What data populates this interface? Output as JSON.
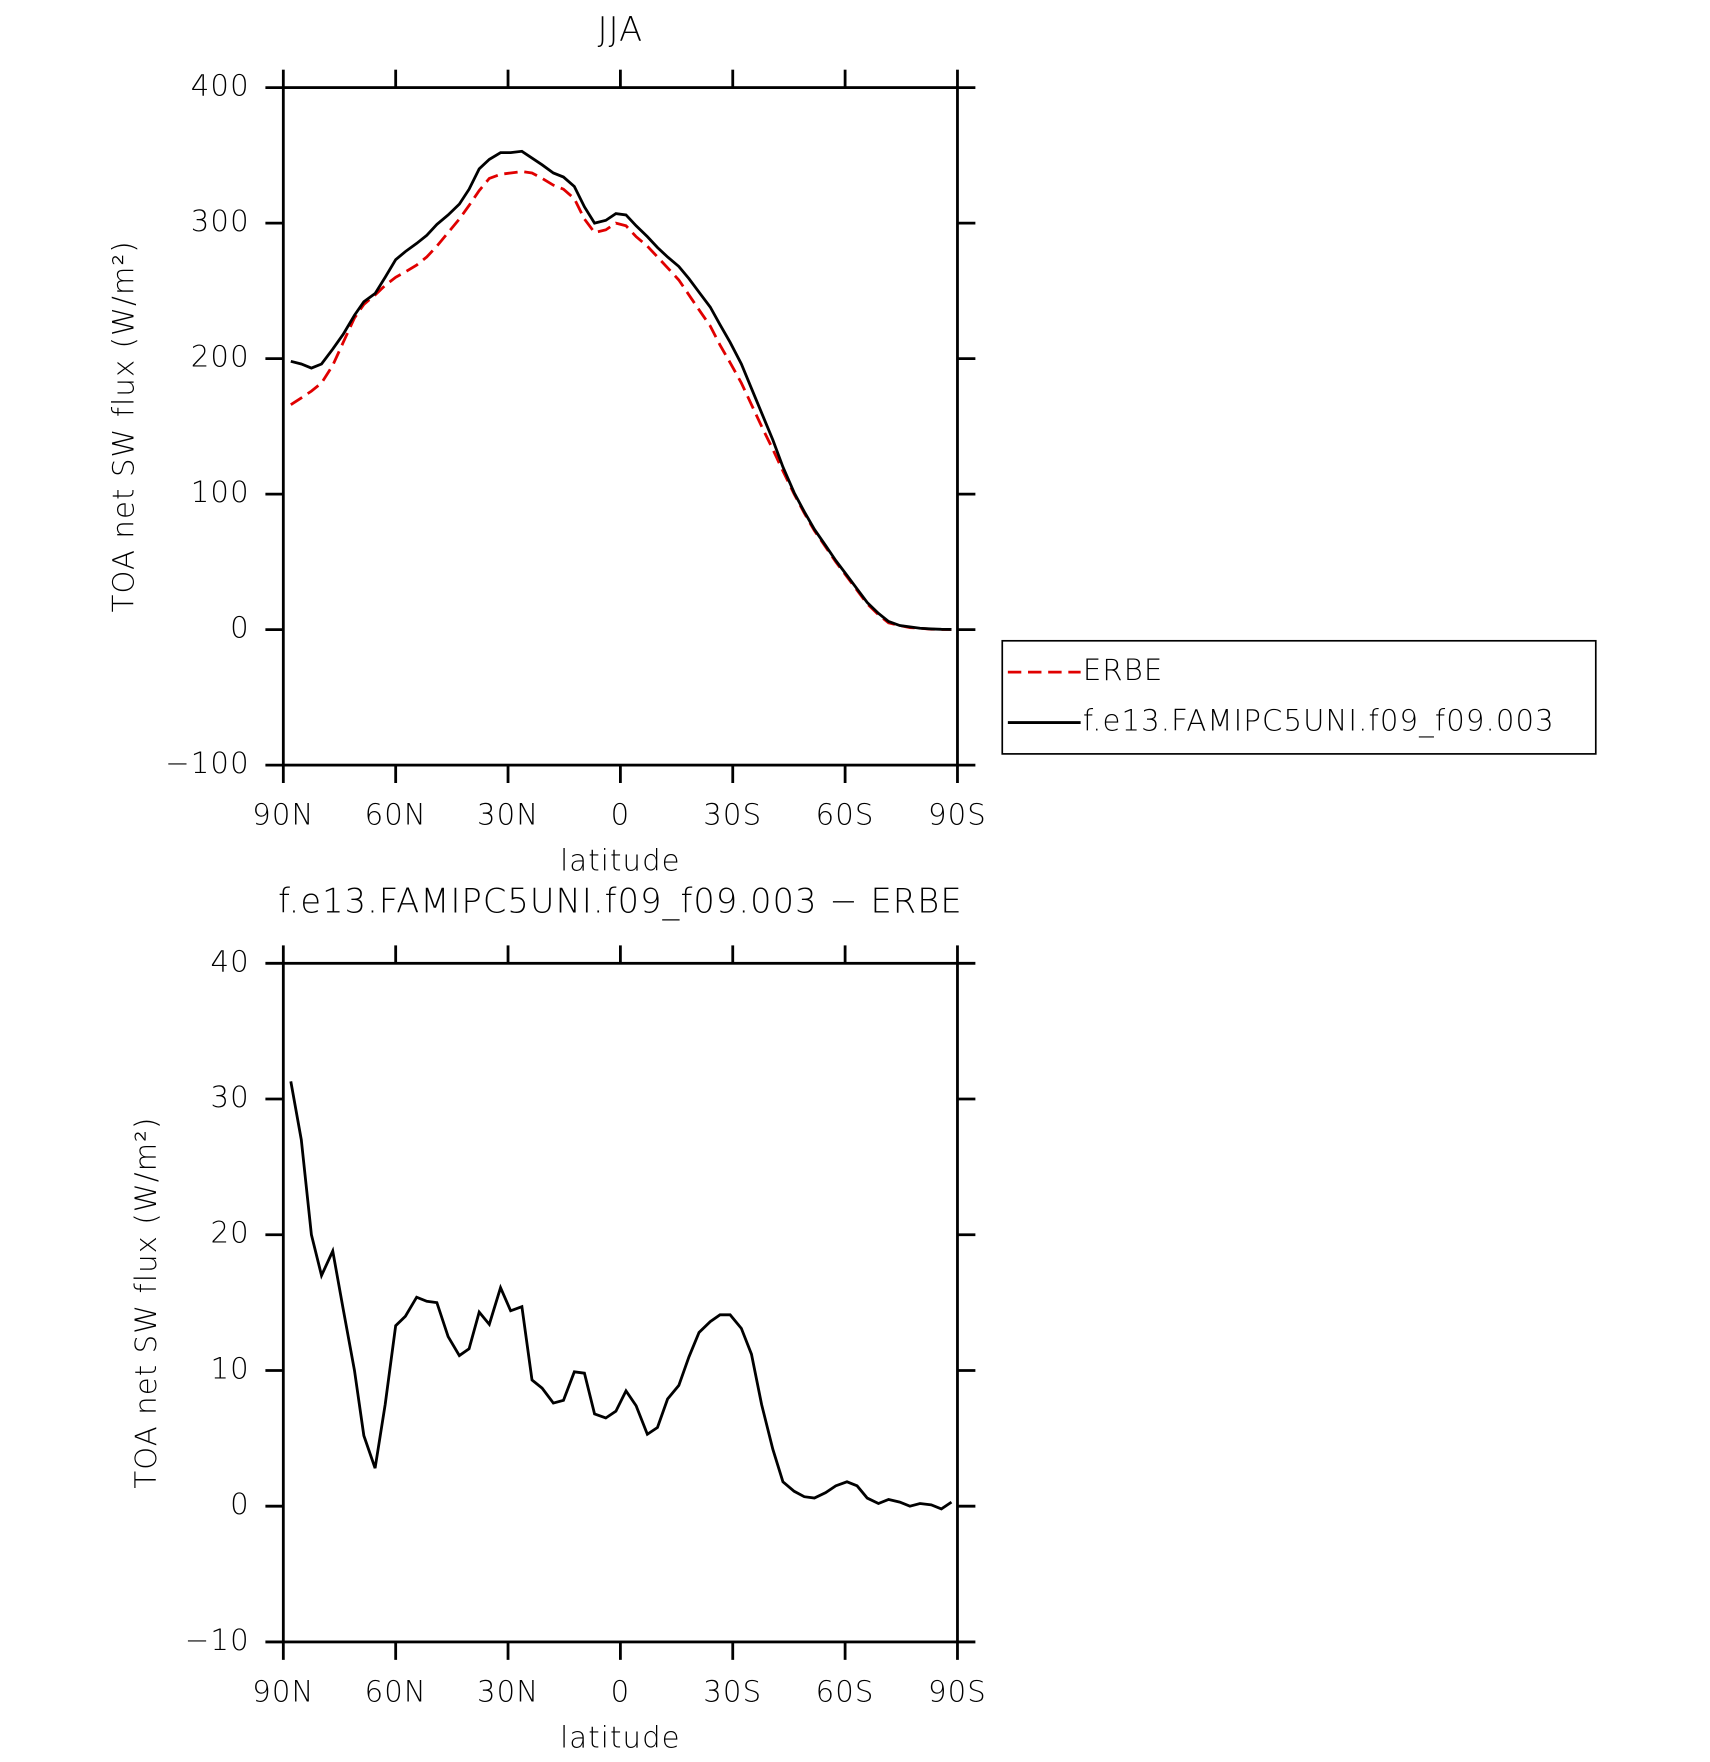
{
  "chart_data": [
    {
      "type": "line",
      "title": "JJA",
      "xlabel": "latitude",
      "ylabel": "TOA net SW flux (W/m²)",
      "x": [
        88,
        85.2,
        82.5,
        79.8,
        76.8,
        74,
        71,
        68.5,
        65.5,
        62.8,
        60,
        57.4,
        54.4,
        51.7,
        49,
        46,
        43,
        40.4,
        37.7,
        35,
        32,
        29.3,
        26.3,
        23.6,
        20.9,
        17.9,
        15.2,
        12.3,
        9.6,
        6.9,
        3.9,
        1.2,
        -1.5,
        -4.2,
        -7.2,
        -9.9,
        -12.6,
        -15.6,
        -18.3,
        -21,
        -24,
        -26.6,
        -29.3,
        -32.3,
        -35,
        -37.7,
        -40.7,
        -43.4,
        -46.4,
        -49.1,
        -51.8,
        -54.8,
        -57.5,
        -60.5,
        -63.2,
        -65.9,
        -68.9,
        -71.6,
        -74.6,
        -77.3,
        -80,
        -83,
        -85.7,
        -88.4
      ],
      "series": [
        {
          "name": "ERBE",
          "color": "#e00000",
          "dash": true,
          "values": [
            166,
            171,
            176,
            182,
            195,
            212,
            230,
            240,
            247,
            254,
            260,
            264,
            269,
            275,
            283,
            293,
            303,
            313,
            324,
            333,
            336,
            337,
            338,
            337,
            333,
            328,
            325,
            318,
            303,
            293,
            295,
            300,
            298,
            290,
            283,
            275,
            267,
            258,
            247,
            236,
            224,
            210,
            197,
            182,
            166,
            150,
            133,
            117,
            100,
            86,
            73,
            61,
            50,
            39,
            29,
            19,
            11,
            5,
            3,
            1.5,
            1,
            0.3,
            0.1,
            0.1
          ]
        },
        {
          "name": "f.e13.FAMIPC5UNI.f09_f09.003",
          "color": "#000000",
          "dash": false,
          "values": [
            198,
            196,
            193,
            196,
            207,
            218,
            232,
            242,
            248,
            260,
            273,
            279,
            285,
            291,
            299,
            306,
            314,
            325,
            340,
            347,
            352,
            352,
            353,
            348,
            343,
            337,
            334,
            327,
            312,
            300,
            302,
            307,
            306,
            298,
            290,
            282,
            275,
            268,
            259,
            249,
            238,
            225,
            212,
            196,
            178,
            160,
            140,
            120,
            101,
            87,
            74,
            62,
            51,
            40,
            30,
            20,
            12,
            6,
            3,
            2,
            1,
            0.5,
            0.2,
            0.1
          ]
        }
      ],
      "xlim": [
        90,
        -90
      ],
      "xticks": [
        {
          "value": 90,
          "label": "90N"
        },
        {
          "value": 60,
          "label": "60N"
        },
        {
          "value": 30,
          "label": "30N"
        },
        0,
        {
          "value": -30,
          "label": "30S"
        },
        {
          "value": -60,
          "label": "60S"
        },
        {
          "value": -90,
          "label": "90S"
        }
      ],
      "ylim": [
        -100,
        400
      ],
      "yticks": [
        {
          "value": -100,
          "label": "−100"
        },
        0,
        100,
        200,
        300,
        400
      ],
      "legend": "outside-right"
    },
    {
      "type": "line",
      "title": "f.e13.FAMIPC5UNI.f09_f09.003 − ERBE",
      "xlabel": "latitude",
      "ylabel": "TOA net SW flux (W/m²)",
      "x": [
        88,
        85.2,
        82.5,
        79.8,
        76.8,
        74,
        71,
        68.5,
        65.5,
        62.8,
        60,
        57.4,
        54.4,
        51.7,
        49,
        46,
        43,
        40.4,
        37.7,
        35,
        32,
        29.3,
        26.3,
        23.6,
        20.9,
        17.9,
        15.2,
        12.3,
        9.6,
        6.9,
        3.9,
        1.2,
        -1.5,
        -4.2,
        -7.2,
        -9.9,
        -12.6,
        -15.6,
        -18.3,
        -21,
        -24,
        -26.6,
        -29.3,
        -32.3,
        -35,
        -37.7,
        -40.7,
        -43.4,
        -46.4,
        -49.1,
        -51.8,
        -54.8,
        -57.5,
        -60.5,
        -63.2,
        -65.9,
        -68.9,
        -71.6,
        -74.6,
        -77.3,
        -80,
        -83,
        -85.7,
        -88.4
      ],
      "series": [
        {
          "color": "#000000",
          "dash": false,
          "values": [
            31.3,
            27,
            20,
            17,
            18.8,
            14.5,
            10,
            5.2,
            2.8,
            7.5,
            13.3,
            14,
            15.4,
            15.1,
            15,
            12.5,
            11.1,
            11.6,
            14.3,
            13.4,
            16.1,
            14.4,
            14.7,
            9.3,
            8.7,
            7.6,
            7.8,
            9.9,
            9.8,
            6.8,
            6.5,
            7,
            8.5,
            7.4,
            5.3,
            5.8,
            7.9,
            8.9,
            11,
            12.8,
            13.6,
            14.1,
            14.1,
            13.1,
            11.2,
            7.5,
            4.2,
            1.8,
            1.1,
            0.7,
            0.6,
            1,
            1.5,
            1.8,
            1.5,
            0.6,
            0.2,
            0.5,
            0.3,
            0,
            0.2,
            0.1,
            -0.2,
            0.3
          ]
        }
      ],
      "xlim": [
        90,
        -90
      ],
      "xticks": [
        {
          "value": 90,
          "label": "90N"
        },
        {
          "value": 60,
          "label": "60N"
        },
        {
          "value": 30,
          "label": "30N"
        },
        0,
        {
          "value": -30,
          "label": "30S"
        },
        {
          "value": -60,
          "label": "60S"
        },
        {
          "value": -90,
          "label": "90S"
        }
      ],
      "ylim": [
        -10,
        40
      ],
      "yticks": [
        {
          "value": -10,
          "label": "−10"
        },
        0,
        10,
        20,
        30,
        40
      ]
    }
  ]
}
